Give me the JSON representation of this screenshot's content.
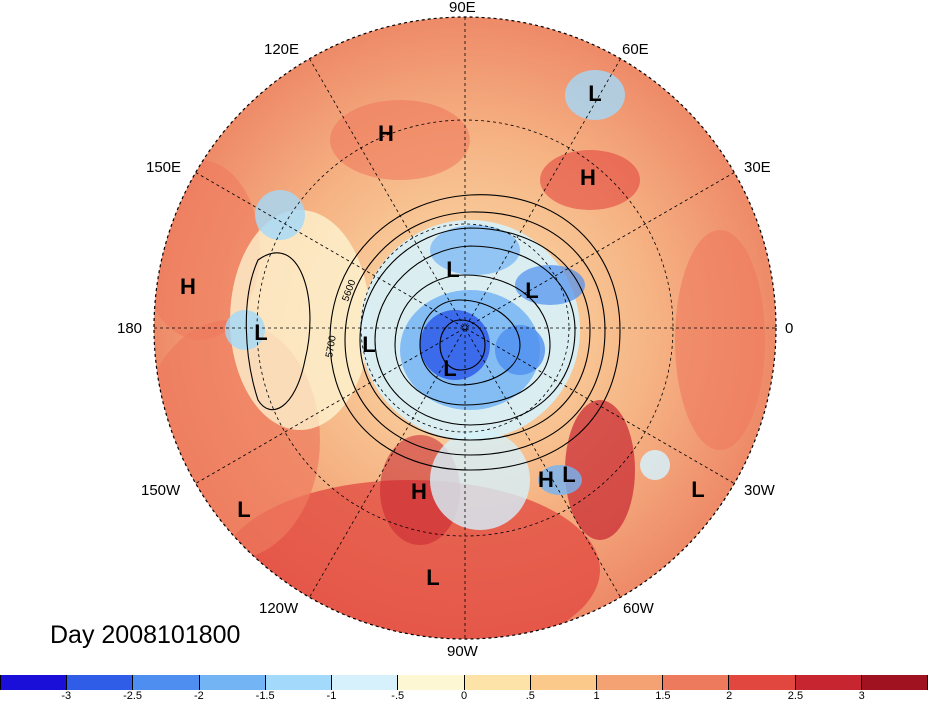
{
  "title": "Day 2008101800",
  "lon_labels": [
    "90E",
    "120E",
    "60E",
    "150E",
    "30E",
    "180",
    "0",
    "150W",
    "30W",
    "120W",
    "60W",
    "90W"
  ],
  "contour_labels": [
    "5600",
    "5700"
  ],
  "pressure_centers": [
    {
      "type": "L",
      "label": "L"
    },
    {
      "type": "H",
      "label": "H"
    },
    {
      "type": "H",
      "label": "H"
    },
    {
      "type": "H",
      "label": "H"
    },
    {
      "type": "L",
      "label": "L"
    },
    {
      "type": "L",
      "label": "L"
    },
    {
      "type": "L",
      "label": "L"
    },
    {
      "type": "L",
      "label": "L"
    },
    {
      "type": "L",
      "label": "L"
    },
    {
      "type": "H",
      "label": "H"
    },
    {
      "type": "L",
      "label": "L"
    },
    {
      "type": "L",
      "label": "L"
    },
    {
      "type": "L",
      "label": "L"
    },
    {
      "type": "H",
      "label": "H"
    },
    {
      "type": "L",
      "label": "L"
    }
  ],
  "colorbar": {
    "colors": [
      "#1a0fd8",
      "#2f5de8",
      "#4d8ef0",
      "#73b4f5",
      "#a3d9fa",
      "#d6f1fb",
      "#fdf7d4",
      "#fde3a8",
      "#fbc98a",
      "#f4a174",
      "#ee7a5e",
      "#e2473f",
      "#c72530",
      "#a0121f"
    ],
    "tick_labels": [
      "-3",
      "-2.5",
      "-2",
      "-1.5",
      "-1",
      "-.5",
      "0",
      ".5",
      "1",
      "1.5",
      "2",
      "2.5",
      "3"
    ]
  }
}
